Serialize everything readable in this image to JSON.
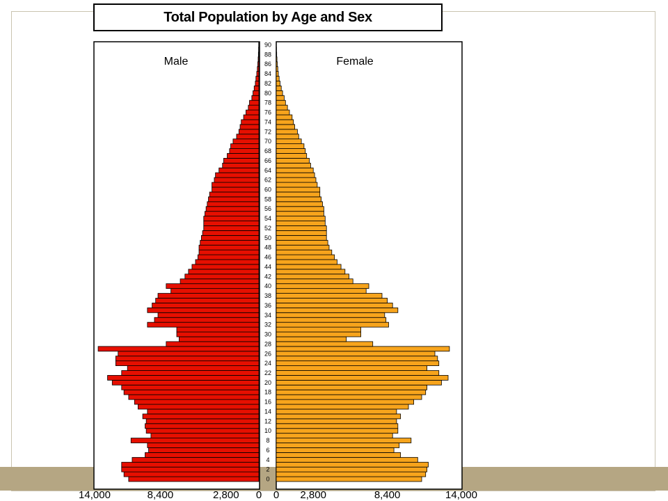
{
  "colors": {
    "male": "#e60f00",
    "female": "#f7a41c",
    "frame": "#c9c3b0",
    "band": "#b5a683"
  },
  "chart_data": {
    "type": "bar",
    "orientation": "horizontal-butterfly",
    "title": "Total Population by Age and Sex",
    "left_label": "Male",
    "right_label": "Female",
    "y_tick_labels": [
      "0",
      "2",
      "4",
      "6",
      "8",
      "10",
      "12",
      "14",
      "16",
      "18",
      "20",
      "22",
      "24",
      "26",
      "28",
      "30",
      "32",
      "34",
      "36",
      "38",
      "40",
      "42",
      "44",
      "46",
      "48",
      "50",
      "52",
      "54",
      "56",
      "58",
      "60",
      "62",
      "64",
      "66",
      "68",
      "70",
      "72",
      "74",
      "76",
      "78",
      "80",
      "82",
      "84",
      "86",
      "88",
      "90"
    ],
    "x_tick_labels_left": [
      "14,000",
      "8,400",
      "2,800",
      "0"
    ],
    "x_tick_labels_right": [
      "0",
      "2,800",
      "8,400",
      "14,000"
    ],
    "xlim": [
      0,
      14000
    ],
    "ages": [
      0,
      1,
      2,
      3,
      4,
      5,
      6,
      7,
      8,
      9,
      10,
      11,
      12,
      13,
      14,
      15,
      16,
      17,
      18,
      19,
      20,
      21,
      22,
      23,
      24,
      25,
      26,
      27,
      28,
      29,
      30,
      31,
      32,
      33,
      34,
      35,
      36,
      37,
      38,
      39,
      40,
      41,
      42,
      43,
      44,
      45,
      46,
      47,
      48,
      49,
      50,
      51,
      52,
      53,
      54,
      55,
      56,
      57,
      58,
      59,
      60,
      61,
      62,
      63,
      64,
      65,
      66,
      67,
      68,
      69,
      70,
      71,
      72,
      73,
      74,
      75,
      76,
      77,
      78,
      79,
      80,
      81,
      82,
      83,
      84,
      85,
      86,
      87,
      88,
      89,
      90
    ],
    "series": [
      {
        "name": "Male",
        "values": [
          11100,
          11500,
          11700,
          11700,
          10800,
          9700,
          9400,
          9500,
          10900,
          9200,
          9600,
          9700,
          9600,
          9900,
          9500,
          10300,
          10600,
          11100,
          11500,
          11700,
          12500,
          12900,
          11700,
          11200,
          12200,
          12200,
          12000,
          13700,
          7900,
          6800,
          7000,
          7000,
          9500,
          8900,
          8600,
          9500,
          9100,
          8800,
          8600,
          7500,
          7900,
          6700,
          6300,
          6000,
          5700,
          5400,
          5200,
          5100,
          5100,
          5000,
          4900,
          4800,
          4700,
          4700,
          4700,
          4600,
          4500,
          4400,
          4300,
          4200,
          4000,
          4000,
          3800,
          3700,
          3400,
          3100,
          3000,
          2700,
          2500,
          2400,
          2200,
          1900,
          1700,
          1600,
          1500,
          1300,
          1100,
          900,
          800,
          600,
          500,
          400,
          300,
          250,
          180,
          130,
          90,
          60,
          40,
          25,
          15
        ]
      },
      {
        "name": "Female",
        "values": [
          11000,
          11300,
          11400,
          11500,
          10700,
          9400,
          8900,
          9300,
          10200,
          8800,
          9200,
          9200,
          9100,
          9400,
          9100,
          10000,
          10400,
          11000,
          11300,
          11400,
          12500,
          13000,
          12300,
          11400,
          12300,
          12200,
          12000,
          13100,
          7300,
          5300,
          6400,
          6400,
          8500,
          8300,
          8200,
          9200,
          8800,
          8400,
          8000,
          6800,
          7000,
          5800,
          5500,
          5200,
          4900,
          4600,
          4400,
          4200,
          4000,
          3900,
          3800,
          3800,
          3800,
          3700,
          3700,
          3600,
          3600,
          3500,
          3400,
          3300,
          3300,
          3100,
          3000,
          2900,
          2800,
          2600,
          2500,
          2300,
          2200,
          2100,
          1900,
          1700,
          1600,
          1400,
          1300,
          1200,
          1000,
          850,
          700,
          600,
          480,
          380,
          290,
          220,
          160,
          120,
          80,
          55,
          35,
          20,
          10
        ]
      }
    ]
  }
}
